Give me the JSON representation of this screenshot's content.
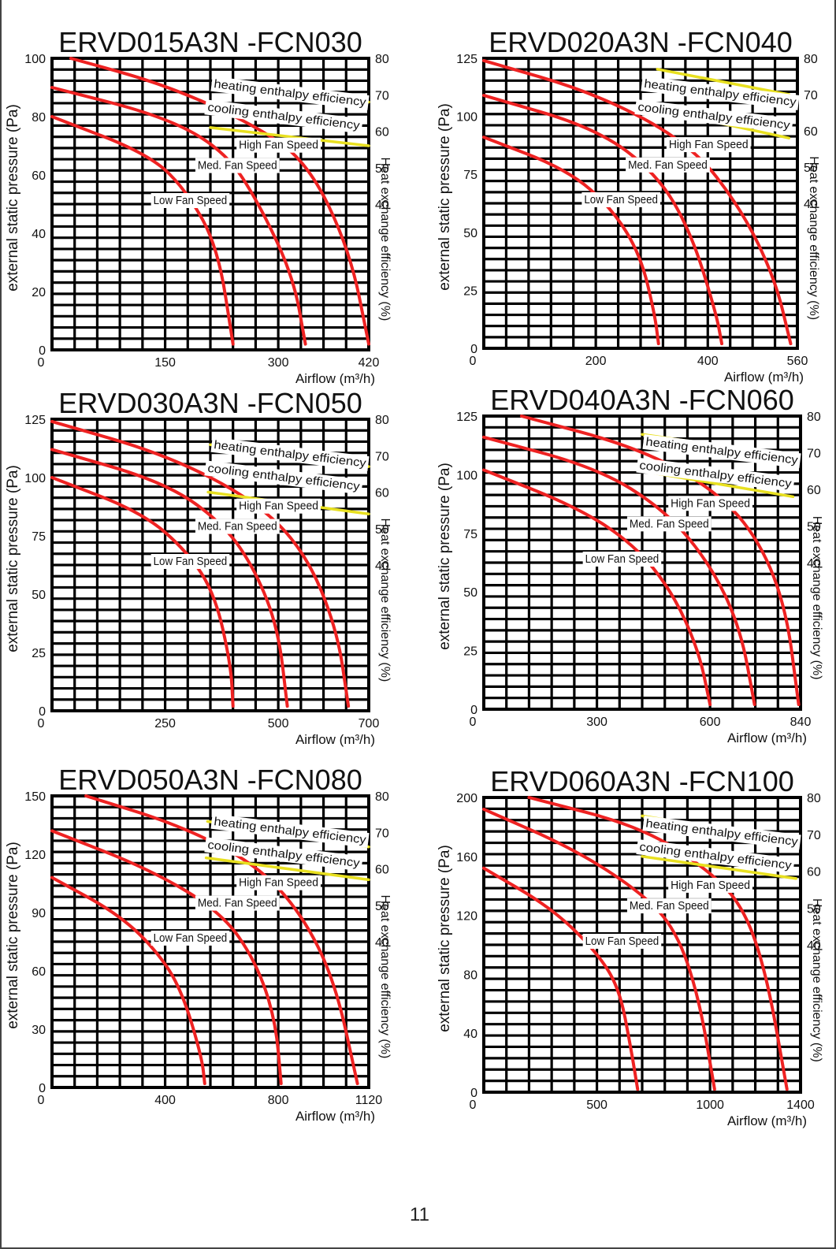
{
  "page": {
    "number": "11"
  },
  "chart_data": [
    {
      "type": "line",
      "title": "ERVD015A3N -FCN030",
      "xlabel": "Airflow (m³/h)",
      "ylabel": "external static pressure (Pa)",
      "y2label": "Heat exchange efficiency (%)",
      "xlim": [
        0,
        420
      ],
      "ylim": [
        0,
        100
      ],
      "x_ticks": [
        "0",
        "150",
        "300",
        "420"
      ],
      "y_ticks": [
        "0",
        "20",
        "40",
        "60",
        "80",
        "100"
      ],
      "y2lim": [
        0,
        80
      ],
      "y2_ticks": [
        "40",
        "50",
        "60",
        "70",
        "80"
      ],
      "series": [
        {
          "name": "High Fan Speed",
          "color": "#ee2222",
          "points": [
            [
              25,
              100
            ],
            [
              150,
              91
            ],
            [
              270,
              77
            ],
            [
              340,
              64
            ],
            [
              395,
              34
            ],
            [
              420,
              2
            ]
          ]
        },
        {
          "name": "Med. Fan Speed",
          "color": "#ee2222",
          "points": [
            [
              0,
              90
            ],
            [
              150,
              80
            ],
            [
              230,
              68
            ],
            [
              275,
              50
            ],
            [
              320,
              25
            ],
            [
              336,
              2
            ]
          ]
        },
        {
          "name": "Low Fan Speed",
          "color": "#ee2222",
          "points": [
            [
              0,
              80
            ],
            [
              130,
              67
            ],
            [
              180,
              54
            ],
            [
              220,
              35
            ],
            [
              240,
              2
            ]
          ]
        },
        {
          "name": "heating enthalpy efficiency",
          "color": "#e8e020",
          "axis": "y2",
          "points": [
            [
              215,
              73
            ],
            [
              420,
              68
            ]
          ]
        },
        {
          "name": "cooling enthalpy efficiency",
          "color": "#e8e020",
          "axis": "y2",
          "points": [
            [
              210,
              61
            ],
            [
              420,
              56
            ]
          ]
        }
      ]
    },
    {
      "type": "line",
      "title": "ERVD020A3N -FCN040",
      "xlabel": "Airflow (m³/h)",
      "ylabel": "external static pressure (Pa)",
      "y2label": "Heat exchange efficiency (%)",
      "xlim": [
        0,
        560
      ],
      "ylim": [
        0,
        125
      ],
      "x_ticks": [
        "0",
        "200",
        "400",
        "560"
      ],
      "y_ticks": [
        "0",
        "25",
        "50",
        "75",
        "100",
        "125"
      ],
      "y2lim": [
        0,
        80
      ],
      "y2_ticks": [
        "40",
        "50",
        "60",
        "70",
        "80"
      ],
      "series": [
        {
          "name": "High Fan Speed",
          "color": "#ee2222",
          "points": [
            [
              0,
              124
            ],
            [
              200,
              110
            ],
            [
              370,
              88
            ],
            [
              460,
              60
            ],
            [
              520,
              30
            ],
            [
              548,
              2
            ]
          ]
        },
        {
          "name": "Med. Fan Speed",
          "color": "#ee2222",
          "points": [
            [
              0,
              109
            ],
            [
              200,
              95
            ],
            [
              310,
              75
            ],
            [
              370,
              50
            ],
            [
              415,
              15
            ],
            [
              425,
              2
            ]
          ]
        },
        {
          "name": "Low Fan Speed",
          "color": "#ee2222",
          "points": [
            [
              0,
              91
            ],
            [
              150,
              77
            ],
            [
              230,
              60
            ],
            [
              280,
              40
            ],
            [
              305,
              15
            ],
            [
              312,
              2
            ]
          ]
        },
        {
          "name": "heating enthalpy efficiency",
          "color": "#e8e020",
          "axis": "y2",
          "points": [
            [
              310,
              77
            ],
            [
              545,
              70
            ]
          ]
        },
        {
          "name": "cooling enthalpy efficiency",
          "color": "#e8e020",
          "axis": "y2",
          "points": [
            [
              305,
              66
            ],
            [
              545,
              58
            ]
          ]
        }
      ]
    },
    {
      "type": "line",
      "title": "ERVD030A3N -FCN050",
      "xlabel": "Airflow (m³/h)",
      "ylabel": "external static pressure (Pa)",
      "y2label": "Heat exchange efficiency (%)",
      "xlim": [
        0,
        700
      ],
      "ylim": [
        0,
        125
      ],
      "x_ticks": [
        "0",
        "250",
        "500",
        "700"
      ],
      "y_ticks": [
        "0",
        "25",
        "50",
        "75",
        "100",
        "125"
      ],
      "y2lim": [
        0,
        80
      ],
      "y2_ticks": [
        "40",
        "50",
        "60",
        "70",
        "80"
      ],
      "series": [
        {
          "name": "High Fan Speed",
          "color": "#ee2222",
          "points": [
            [
              0,
              124
            ],
            [
              250,
              110
            ],
            [
              450,
              90
            ],
            [
              560,
              68
            ],
            [
              630,
              35
            ],
            [
              655,
              2
            ]
          ]
        },
        {
          "name": "Med. Fan Speed",
          "color": "#ee2222",
          "points": [
            [
              0,
              112
            ],
            [
              250,
              98
            ],
            [
              380,
              80
            ],
            [
              450,
              60
            ],
            [
              500,
              35
            ],
            [
              520,
              2
            ]
          ]
        },
        {
          "name": "Low Fan Speed",
          "color": "#ee2222",
          "points": [
            [
              0,
              100
            ],
            [
              200,
              85
            ],
            [
              300,
              68
            ],
            [
              360,
              50
            ],
            [
              395,
              20
            ],
            [
              400,
              2
            ]
          ]
        },
        {
          "name": "heating enthalpy efficiency",
          "color": "#e8e020",
          "axis": "y2",
          "points": [
            [
              350,
              73
            ],
            [
              700,
              67
            ]
          ]
        },
        {
          "name": "cooling enthalpy efficiency",
          "color": "#e8e020",
          "axis": "y2",
          "points": [
            [
              345,
              60
            ],
            [
              700,
              54
            ]
          ]
        }
      ]
    },
    {
      "type": "line",
      "title": "ERVD040A3N -FCN060",
      "xlabel": "Airflow (m³/h)",
      "ylabel": "external static pressure (Pa)",
      "y2label": "Heat exchange efficiency (%)",
      "xlim": [
        0,
        840
      ],
      "ylim": [
        0,
        125
      ],
      "x_ticks": [
        "0",
        "300",
        "600",
        "840"
      ],
      "y_ticks": [
        "0",
        "25",
        "50",
        "75",
        "100",
        "125"
      ],
      "y2lim": [
        0,
        80
      ],
      "y2_ticks": [
        "40",
        "50",
        "60",
        "70",
        "80"
      ],
      "series": [
        {
          "name": "High Fan Speed",
          "color": "#ee2222",
          "points": [
            [
              100,
              125
            ],
            [
              400,
              112
            ],
            [
              600,
              95
            ],
            [
              720,
              75
            ],
            [
              800,
              45
            ],
            [
              835,
              2
            ]
          ]
        },
        {
          "name": "Med. Fan Speed",
          "color": "#ee2222",
          "points": [
            [
              0,
              116
            ],
            [
              300,
              103
            ],
            [
              480,
              85
            ],
            [
              600,
              62
            ],
            [
              680,
              35
            ],
            [
              718,
              2
            ]
          ]
        },
        {
          "name": "Low Fan Speed",
          "color": "#ee2222",
          "points": [
            [
              0,
              102
            ],
            [
              250,
              86
            ],
            [
              400,
              70
            ],
            [
              500,
              50
            ],
            [
              570,
              25
            ],
            [
              600,
              2
            ]
          ]
        },
        {
          "name": "heating enthalpy efficiency",
          "color": "#e8e020",
          "axis": "y2",
          "points": [
            [
              420,
              75
            ],
            [
              820,
              69
            ]
          ]
        },
        {
          "name": "cooling enthalpy efficiency",
          "color": "#e8e020",
          "axis": "y2",
          "points": [
            [
              420,
              65
            ],
            [
              820,
              58
            ]
          ]
        }
      ]
    },
    {
      "type": "line",
      "title": "ERVD050A3N -FCN080",
      "xlabel": "Airflow (m³/h)",
      "ylabel": "external static pressure (Pa)",
      "y2label": "Heat exchange efficiency (%)",
      "xlim": [
        0,
        1120
      ],
      "ylim": [
        0,
        150
      ],
      "x_ticks": [
        "0",
        "400",
        "800",
        "1120"
      ],
      "y_ticks": [
        "0",
        "30",
        "60",
        "90",
        "120",
        "150"
      ],
      "y2lim": [
        0,
        80
      ],
      "y2_ticks": [
        "40",
        "50",
        "60",
        "70",
        "80"
      ],
      "series": [
        {
          "name": "High Fan Speed",
          "color": "#ee2222",
          "points": [
            [
              120,
              150
            ],
            [
              450,
              135
            ],
            [
              720,
              115
            ],
            [
              880,
              90
            ],
            [
              1000,
              55
            ],
            [
              1080,
              2
            ]
          ]
        },
        {
          "name": "Med. Fan Speed",
          "color": "#ee2222",
          "points": [
            [
              0,
              132
            ],
            [
              350,
              112
            ],
            [
              600,
              90
            ],
            [
              720,
              65
            ],
            [
              790,
              35
            ],
            [
              810,
              2
            ]
          ]
        },
        {
          "name": "Low Fan Speed",
          "color": "#ee2222",
          "points": [
            [
              0,
              108
            ],
            [
              250,
              88
            ],
            [
              400,
              65
            ],
            [
              470,
              45
            ],
            [
              530,
              15
            ],
            [
              540,
              2
            ]
          ]
        },
        {
          "name": "heating enthalpy efficiency",
          "color": "#e8e020",
          "axis": "y2",
          "points": [
            [
              550,
              73
            ],
            [
              1120,
              66
            ]
          ]
        },
        {
          "name": "cooling enthalpy efficiency",
          "color": "#e8e020",
          "axis": "y2",
          "points": [
            [
              545,
              63
            ],
            [
              1120,
              57
            ]
          ]
        }
      ]
    },
    {
      "type": "line",
      "title": "ERVD060A3N -FCN100",
      "xlabel": "Airflow (m³/h)",
      "ylabel": "external static pressure (Pa)",
      "y2label": "Heat exchange efficiency (%)",
      "xlim": [
        0,
        1400
      ],
      "ylim": [
        0,
        200
      ],
      "x_ticks": [
        "0",
        "500",
        "1000",
        "1400"
      ],
      "y_ticks": [
        "0",
        "40",
        "80",
        "120",
        "160",
        "200"
      ],
      "y2lim": [
        0,
        80
      ],
      "y2_ticks": [
        "40",
        "50",
        "60",
        "70",
        "80"
      ],
      "series": [
        {
          "name": "High Fan Speed",
          "color": "#ee2222",
          "points": [
            [
              200,
              200
            ],
            [
              700,
              180
            ],
            [
              1000,
              150
            ],
            [
              1150,
              125
            ],
            [
              1250,
              80
            ],
            [
              1340,
              2
            ]
          ]
        },
        {
          "name": "Med. Fan Speed",
          "color": "#ee2222",
          "points": [
            [
              0,
              192
            ],
            [
              400,
              165
            ],
            [
              700,
              135
            ],
            [
              850,
              110
            ],
            [
              950,
              65
            ],
            [
              1020,
              2
            ]
          ]
        },
        {
          "name": "Low Fan Speed",
          "color": "#ee2222",
          "points": [
            [
              0,
              152
            ],
            [
              300,
              125
            ],
            [
              500,
              95
            ],
            [
              600,
              70
            ],
            [
              650,
              30
            ],
            [
              680,
              2
            ]
          ]
        },
        {
          "name": "heating enthalpy efficiency",
          "color": "#e8e020",
          "axis": "y2",
          "points": [
            [
              700,
              75
            ],
            [
              1380,
              68
            ]
          ]
        },
        {
          "name": "cooling enthalpy efficiency",
          "color": "#e8e020",
          "axis": "y2",
          "points": [
            [
              700,
              64
            ],
            [
              1380,
              58
            ]
          ]
        }
      ]
    }
  ]
}
